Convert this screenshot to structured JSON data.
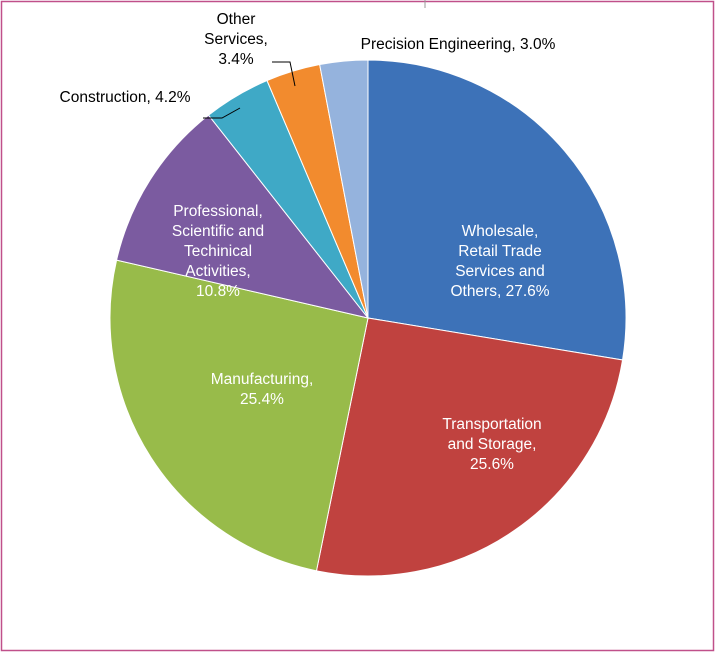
{
  "chart_data": {
    "type": "pie",
    "categories": null,
    "values": [
      27.6,
      25.6,
      25.4,
      10.8,
      4.2,
      3.4,
      3.0
    ],
    "value_labels": [
      "Wholesale, Retail Trade Services and Others, 27.6%",
      "Transportation and Storage, 25.6%",
      "Manufacturing, 25.4%",
      "Professional, Scientific and Techinical Activities, 10.8%",
      "Construction, 4.2%",
      "Other Services, 3.4%",
      "Precision Engineering, 3.0%"
    ],
    "colors": [
      "#3d72b8",
      "#c0423f",
      "#98bb4a",
      "#7b5ba0",
      "#3fa9c6",
      "#f28b2e",
      "#95b3dd"
    ]
  }
}
